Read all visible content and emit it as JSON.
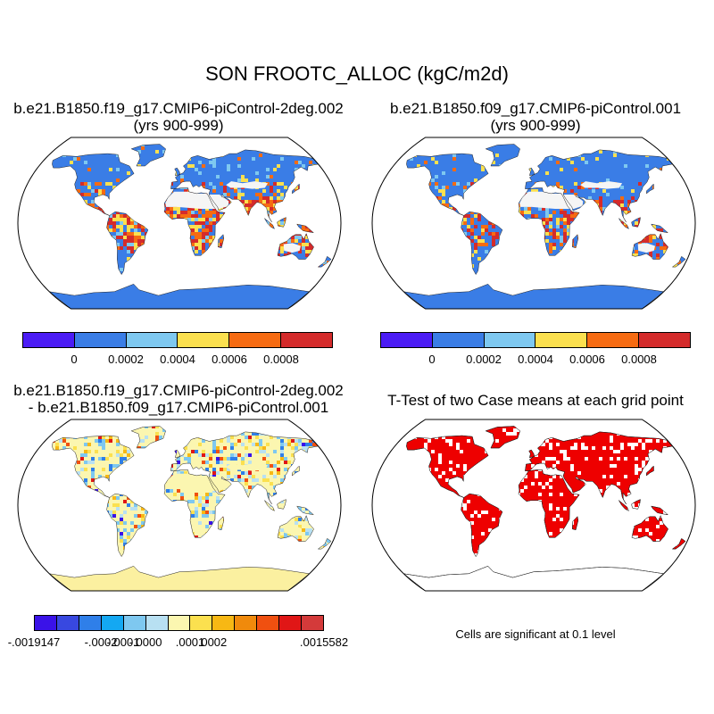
{
  "title": "SON FROOTC_ALLOC (kgC/m2d)",
  "panels": [
    {
      "id": "case1",
      "title_lines": [
        "b.e21.B1850.f19_g17.CMIP6-piControl-2deg.002",
        "(yrs 900-999)"
      ],
      "colorbar": {
        "colors": [
          "#4b1cf5",
          "#3a7de6",
          "#7ec8f0",
          "#fbe04f",
          "#f66b12",
          "#d42b2b"
        ],
        "tick_labels": [
          "0",
          "0.0002",
          "0.0004",
          "0.0006",
          "0.0008"
        ]
      }
    },
    {
      "id": "case2",
      "title_lines": [
        "b.e21.B1850.f09_g17.CMIP6-piControl.001",
        "(yrs 900-999)"
      ],
      "colorbar": {
        "colors": [
          "#4b1cf5",
          "#3a7de6",
          "#7ec8f0",
          "#fbe04f",
          "#f66b12",
          "#d42b2b"
        ],
        "tick_labels": [
          "0",
          "0.0002",
          "0.0004",
          "0.0006",
          "0.0008"
        ]
      }
    },
    {
      "id": "difference",
      "title_lines": [
        "b.e21.B1850.f19_g17.CMIP6-piControl-2deg.002",
        "- b.e21.B1850.f09_g17.CMIP6-piControl.001"
      ],
      "colorbar": {
        "colors": [
          "#3a12e8",
          "#3848e0",
          "#2f7fe9",
          "#14a8f2",
          "#7ec8f0",
          "#b8e0f2",
          "#fbf6b0",
          "#fbe04f",
          "#f7b814",
          "#f08a0c",
          "#f05010",
          "#e01616",
          "#d43a3a"
        ],
        "tick_labels": [
          "-.0019147",
          "-.0002",
          "-.0001",
          "-.0000",
          ".0001",
          ".0002",
          ".0015582"
        ]
      }
    },
    {
      "id": "ttest",
      "title_lines": [
        "T-Test of two Case means at each grid point"
      ],
      "note": "Cells are significant at 0.1 level"
    }
  ],
  "map_colors": {
    "ocean": "#ffffff",
    "land_base": "#3a7de6",
    "desert": "#f5f5f5",
    "antarctica": "#3a7de6",
    "diff_base": "#fbf6b0",
    "diff_antarctica": "#fbf0a0",
    "significant": "#ee0000"
  }
}
